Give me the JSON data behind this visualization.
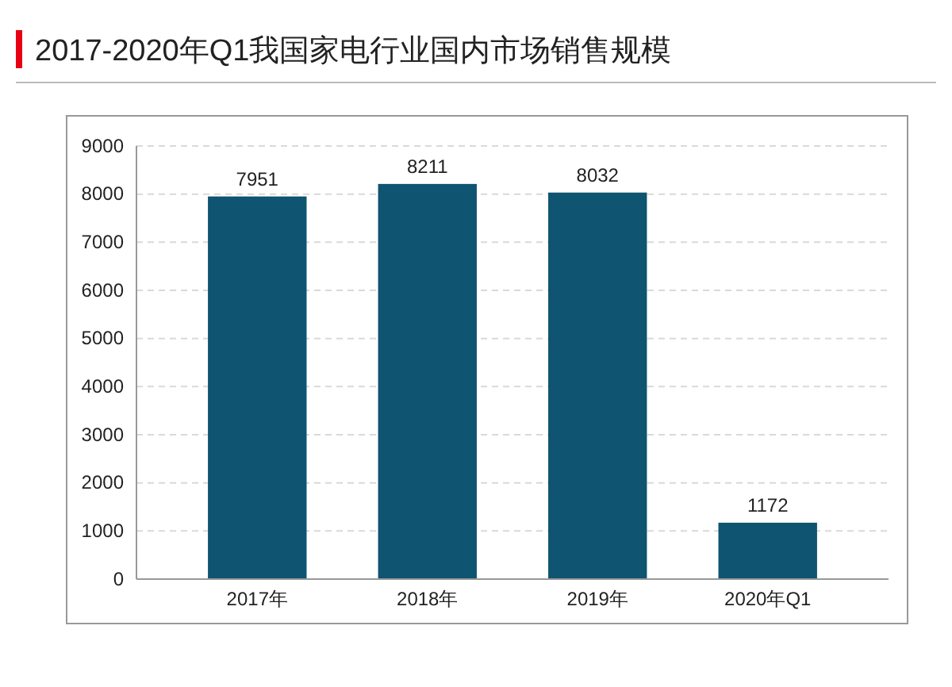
{
  "chart_data": {
    "type": "bar",
    "title": "2017-2020年Q1我国家电行业国内市场销售规模",
    "categories": [
      "2017年",
      "2018年",
      "2019年",
      "2020年Q1"
    ],
    "values": [
      7951,
      8211,
      8032,
      1172
    ],
    "color": "#0f5470",
    "ylim": [
      0,
      9000
    ],
    "yticks": [
      0,
      1000,
      2000,
      3000,
      4000,
      5000,
      6000,
      7000,
      8000,
      9000
    ],
    "grid": "y",
    "data_labels": true
  }
}
